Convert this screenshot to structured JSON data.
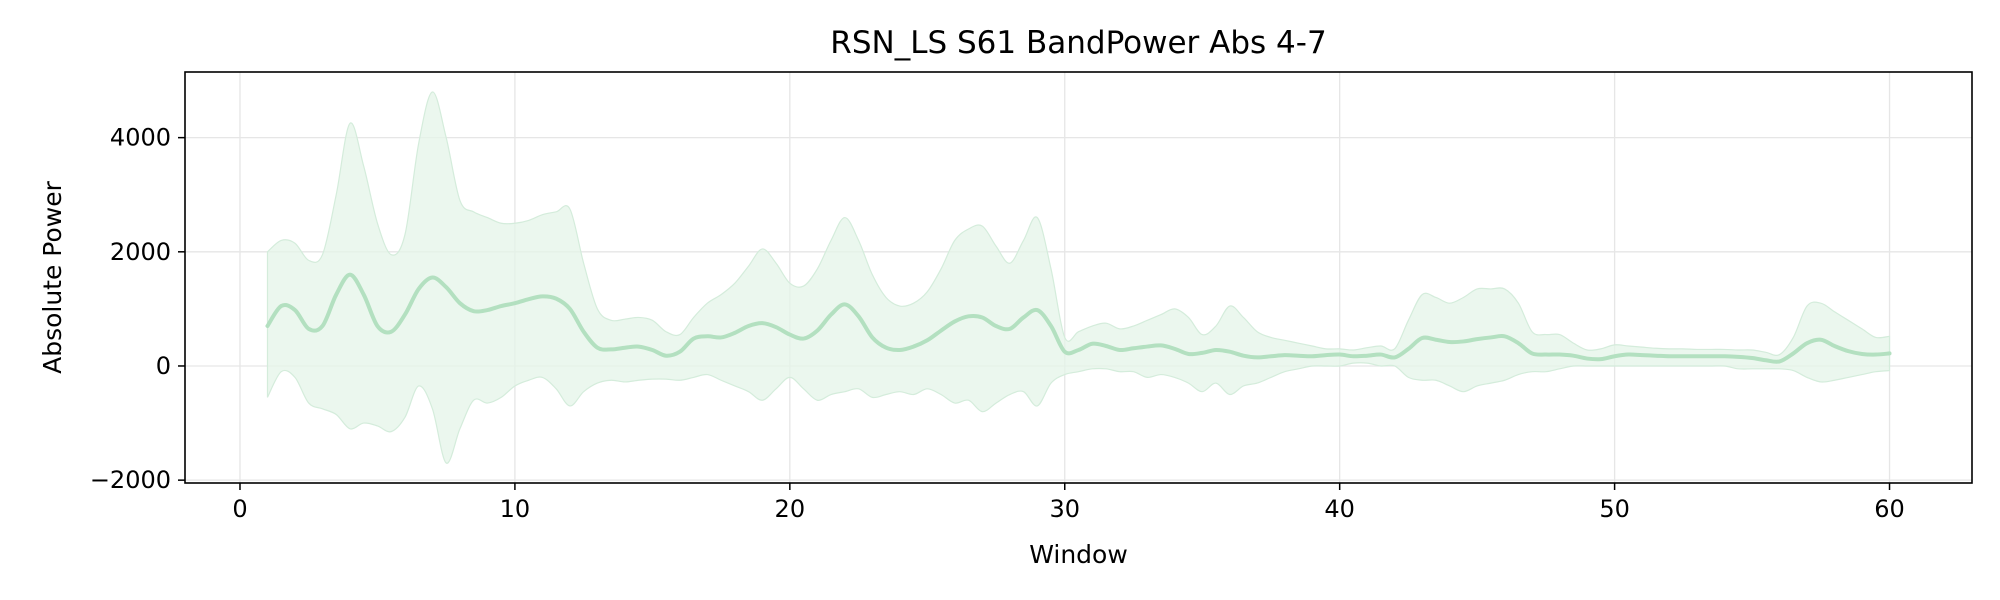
{
  "chart_data": {
    "type": "line",
    "title": "RSN_LS S61 BandPower Abs 4-7",
    "xlabel": "Window",
    "ylabel": "Absolute Power",
    "xlim": [
      -2,
      63
    ],
    "ylim": [
      -2050,
      5150
    ],
    "xticks": [
      0,
      10,
      20,
      30,
      40,
      50,
      60
    ],
    "xtick_labels": [
      "0",
      "10",
      "20",
      "30",
      "40",
      "50",
      "60"
    ],
    "yticks": [
      -2000,
      0,
      2000,
      4000
    ],
    "ytick_labels": [
      "−2000",
      "0",
      "2000",
      "4000"
    ],
    "grid": true,
    "colors": {
      "line": "#b3e0c0",
      "band": "#e4f4e8",
      "band_edge": "#d4ecdb",
      "grid": "#e6e6e6",
      "axis": "#000000"
    },
    "series": [
      {
        "name": "mean",
        "x": [
          1.0,
          1.5,
          2.0,
          2.5,
          3.0,
          3.5,
          4.0,
          4.5,
          5.0,
          5.5,
          6.0,
          6.5,
          7.0,
          7.5,
          8.0,
          8.5,
          9.0,
          9.5,
          10.0,
          10.5,
          11.0,
          11.5,
          12.0,
          12.5,
          13.0,
          13.5,
          14.0,
          14.5,
          15.0,
          15.5,
          16.0,
          16.5,
          17.0,
          17.5,
          18.0,
          18.5,
          19.0,
          19.5,
          20.0,
          20.5,
          21.0,
          21.5,
          22.0,
          22.5,
          23.0,
          23.5,
          24.0,
          24.5,
          25.0,
          25.5,
          26.0,
          26.5,
          27.0,
          27.5,
          28.0,
          28.5,
          29.0,
          29.5,
          30.0,
          30.5,
          31.0,
          31.5,
          32.0,
          32.5,
          33.0,
          33.5,
          34.0,
          34.5,
          35.0,
          35.5,
          36.0,
          36.5,
          37.0,
          37.5,
          38.0,
          38.5,
          39.0,
          39.5,
          40.0,
          40.5,
          41.0,
          41.5,
          42.0,
          42.5,
          43.0,
          43.5,
          44.0,
          44.5,
          45.0,
          45.5,
          46.0,
          46.5,
          47.0,
          47.5,
          48.0,
          48.5,
          49.0,
          49.5,
          50.0,
          50.5,
          51.0,
          51.5,
          52.0,
          52.5,
          53.0,
          53.5,
          54.0,
          54.5,
          55.0,
          55.5,
          56.0,
          56.5,
          57.0,
          57.5,
          58.0,
          58.5,
          59.0,
          59.5,
          60.0
        ],
        "values": [
          700,
          1050,
          980,
          650,
          700,
          1250,
          1600,
          1250,
          700,
          600,
          900,
          1350,
          1550,
          1380,
          1100,
          960,
          980,
          1050,
          1100,
          1170,
          1220,
          1180,
          1000,
          600,
          320,
          290,
          320,
          340,
          280,
          180,
          250,
          480,
          520,
          500,
          580,
          700,
          750,
          680,
          550,
          480,
          620,
          900,
          1080,
          870,
          500,
          320,
          280,
          340,
          450,
          620,
          780,
          870,
          850,
          700,
          650,
          850,
          980,
          700,
          250,
          280,
          390,
          350,
          280,
          310,
          340,
          360,
          300,
          210,
          230,
          280,
          250,
          180,
          150,
          170,
          190,
          180,
          170,
          190,
          200,
          170,
          180,
          200,
          150,
          300,
          490,
          460,
          420,
          430,
          470,
          500,
          520,
          400,
          220,
          200,
          200,
          180,
          130,
          120,
          170,
          200,
          190,
          180,
          170,
          170,
          170,
          170,
          170,
          160,
          140,
          100,
          80,
          220,
          400,
          460,
          350,
          260,
          210,
          200,
          220
        ]
      },
      {
        "name": "upper",
        "x": [
          1.0,
          1.5,
          2.0,
          2.5,
          3.0,
          3.5,
          4.0,
          4.5,
          5.0,
          5.5,
          6.0,
          6.5,
          7.0,
          7.5,
          8.0,
          8.5,
          9.0,
          9.5,
          10.0,
          10.5,
          11.0,
          11.5,
          12.0,
          12.5,
          13.0,
          13.5,
          14.0,
          14.5,
          15.0,
          15.5,
          16.0,
          16.5,
          17.0,
          17.5,
          18.0,
          18.5,
          19.0,
          19.5,
          20.0,
          20.5,
          21.0,
          21.5,
          22.0,
          22.5,
          23.0,
          23.5,
          24.0,
          24.5,
          25.0,
          25.5,
          26.0,
          26.5,
          27.0,
          27.5,
          28.0,
          28.5,
          29.0,
          29.5,
          30.0,
          30.5,
          31.0,
          31.5,
          32.0,
          32.5,
          33.0,
          33.5,
          34.0,
          34.5,
          35.0,
          35.5,
          36.0,
          36.5,
          37.0,
          37.5,
          38.0,
          38.5,
          39.0,
          39.5,
          40.0,
          40.5,
          41.0,
          41.5,
          42.0,
          42.5,
          43.0,
          43.5,
          44.0,
          44.5,
          45.0,
          45.5,
          46.0,
          46.5,
          47.0,
          47.5,
          48.0,
          48.5,
          49.0,
          49.5,
          50.0,
          50.5,
          51.0,
          51.5,
          52.0,
          52.5,
          53.0,
          53.5,
          54.0,
          54.5,
          55.0,
          55.5,
          56.0,
          56.5,
          57.0,
          57.5,
          58.0,
          58.5,
          59.0,
          59.5,
          60.0
        ],
        "values": [
          2000,
          2200,
          2150,
          1850,
          1950,
          3000,
          4250,
          3500,
          2500,
          1950,
          2300,
          3900,
          4800,
          4000,
          2900,
          2700,
          2600,
          2500,
          2500,
          2550,
          2650,
          2700,
          2750,
          1800,
          1000,
          800,
          820,
          850,
          800,
          600,
          550,
          850,
          1100,
          1250,
          1450,
          1750,
          2050,
          1800,
          1450,
          1400,
          1700,
          2200,
          2600,
          2200,
          1600,
          1200,
          1050,
          1100,
          1300,
          1700,
          2200,
          2400,
          2450,
          2100,
          1800,
          2200,
          2600,
          1700,
          500,
          600,
          700,
          750,
          650,
          700,
          800,
          900,
          1000,
          850,
          550,
          700,
          1050,
          850,
          600,
          500,
          450,
          400,
          350,
          300,
          300,
          280,
          320,
          350,
          300,
          800,
          1250,
          1200,
          1100,
          1200,
          1350,
          1350,
          1350,
          1100,
          600,
          550,
          550,
          400,
          280,
          300,
          370,
          350,
          330,
          310,
          300,
          300,
          290,
          290,
          290,
          280,
          280,
          240,
          200,
          500,
          1050,
          1100,
          950,
          800,
          650,
          500,
          520
        ]
      },
      {
        "name": "lower",
        "x": [
          1.0,
          1.5,
          2.0,
          2.5,
          3.0,
          3.5,
          4.0,
          4.5,
          5.0,
          5.5,
          6.0,
          6.5,
          7.0,
          7.5,
          8.0,
          8.5,
          9.0,
          9.5,
          10.0,
          10.5,
          11.0,
          11.5,
          12.0,
          12.5,
          13.0,
          13.5,
          14.0,
          14.5,
          15.0,
          15.5,
          16.0,
          16.5,
          17.0,
          17.5,
          18.0,
          18.5,
          19.0,
          19.5,
          20.0,
          20.5,
          21.0,
          21.5,
          22.0,
          22.5,
          23.0,
          23.5,
          24.0,
          24.5,
          25.0,
          25.5,
          26.0,
          26.5,
          27.0,
          27.5,
          28.0,
          28.5,
          29.0,
          29.5,
          30.0,
          30.5,
          31.0,
          31.5,
          32.0,
          32.5,
          33.0,
          33.5,
          34.0,
          34.5,
          35.0,
          35.5,
          36.0,
          36.5,
          37.0,
          37.5,
          38.0,
          38.5,
          39.0,
          39.5,
          40.0,
          40.5,
          41.0,
          41.5,
          42.0,
          42.5,
          43.0,
          43.5,
          44.0,
          44.5,
          45.0,
          45.5,
          46.0,
          46.5,
          47.0,
          47.5,
          48.0,
          48.5,
          49.0,
          49.5,
          50.0,
          50.5,
          51.0,
          51.5,
          52.0,
          52.5,
          53.0,
          53.5,
          54.0,
          54.5,
          55.0,
          55.5,
          56.0,
          56.5,
          57.0,
          57.5,
          58.0,
          58.5,
          59.0,
          59.5,
          60.0
        ],
        "values": [
          -550,
          -100,
          -200,
          -650,
          -750,
          -850,
          -1100,
          -1000,
          -1050,
          -1150,
          -900,
          -350,
          -750,
          -1700,
          -1100,
          -600,
          -650,
          -550,
          -350,
          -250,
          -200,
          -400,
          -700,
          -450,
          -300,
          -250,
          -280,
          -250,
          -230,
          -230,
          -250,
          -200,
          -150,
          -250,
          -350,
          -450,
          -600,
          -400,
          -200,
          -400,
          -600,
          -500,
          -450,
          -400,
          -550,
          -500,
          -450,
          -500,
          -400,
          -500,
          -650,
          -600,
          -800,
          -650,
          -500,
          -450,
          -700,
          -300,
          -150,
          -100,
          -50,
          -50,
          -100,
          -100,
          -200,
          -150,
          -200,
          -300,
          -450,
          -300,
          -500,
          -350,
          -300,
          -200,
          -100,
          -50,
          0,
          0,
          0,
          50,
          50,
          0,
          0,
          -200,
          -250,
          -250,
          -350,
          -450,
          -350,
          -300,
          -250,
          -150,
          -100,
          -100,
          -50,
          0,
          0,
          0,
          0,
          0,
          0,
          0,
          0,
          0,
          0,
          0,
          0,
          -50,
          -50,
          -50,
          -50,
          -80,
          -200,
          -280,
          -250,
          -200,
          -150,
          -100,
          -80
        ]
      }
    ]
  }
}
